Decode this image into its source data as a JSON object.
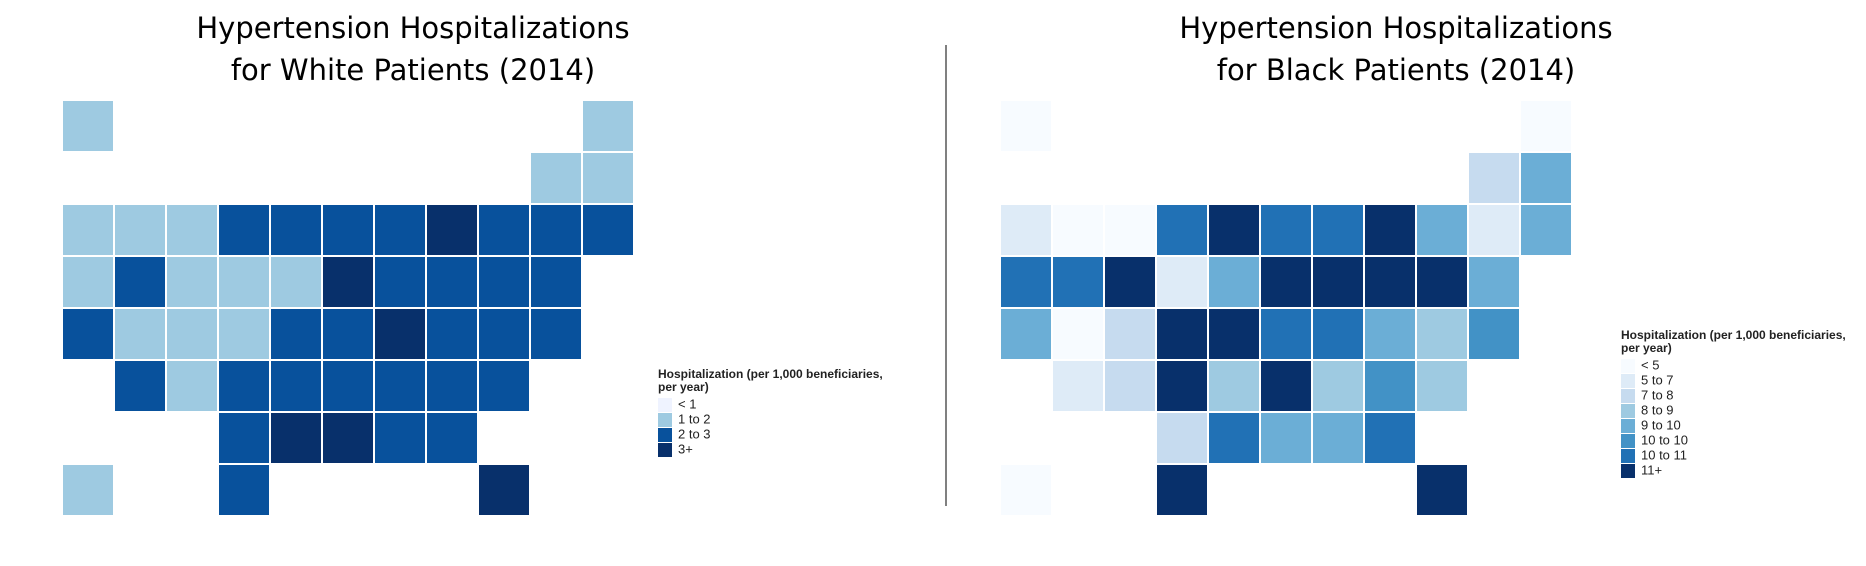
{
  "maps": [
    {
      "title": [
        "Hypertension Hospitalizations",
        "for White Patients (2014)"
      ],
      "legend_title": [
        "Hospitalization (per 1,000 beneficiaries,",
        "per year)"
      ],
      "legend": [
        {
          "label": "< 1",
          "color": "#eff3ff"
        },
        {
          "label": "1 to 2",
          "color": "#9ecae1"
        },
        {
          "label": "2 to 3",
          "color": "#08519c"
        },
        {
          "label": "3+",
          "color": "#08306b"
        }
      ],
      "values": [
        1,
        1,
        1,
        1,
        1,
        1,
        1,
        2,
        2,
        2,
        2,
        3,
        2,
        2,
        2,
        1,
        2,
        1,
        1,
        1,
        3,
        2,
        2,
        2,
        2,
        2,
        1,
        1,
        1,
        2,
        2,
        3,
        2,
        2,
        2,
        2,
        1,
        2,
        2,
        2,
        2,
        2,
        2,
        2,
        3,
        3,
        2,
        2,
        1,
        2,
        3
      ]
    },
    {
      "title": [
        "Hypertension Hospitalizations",
        "for Black Patients (2014)"
      ],
      "legend_title": [
        "Hospitalization (per 1,000 beneficiaries,",
        "per year)"
      ],
      "legend": [
        {
          "label": "< 5",
          "color": "#f7fbff"
        },
        {
          "label": "5 to 7",
          "color": "#deebf7"
        },
        {
          "label": "7 to 8",
          "color": "#c6dbef"
        },
        {
          "label": "8 to 9",
          "color": "#9ecae1"
        },
        {
          "label": "9 to 10",
          "color": "#6baed6"
        },
        {
          "label": "10 to 10",
          "color": "#4292c6"
        },
        {
          "label": "10 to 11",
          "color": "#2171b5"
        },
        {
          "label": "11+",
          "color": "#08306b"
        }
      ],
      "values": [
        0,
        0,
        2,
        4,
        1,
        0,
        0,
        6,
        7,
        6,
        6,
        7,
        4,
        1,
        4,
        6,
        6,
        7,
        1,
        4,
        7,
        7,
        7,
        7,
        4,
        4,
        0,
        2,
        7,
        7,
        6,
        6,
        4,
        3,
        5,
        1,
        2,
        7,
        3,
        7,
        3,
        5,
        3,
        2,
        6,
        4,
        4,
        6,
        0,
        7,
        7
      ]
    }
  ]
}
